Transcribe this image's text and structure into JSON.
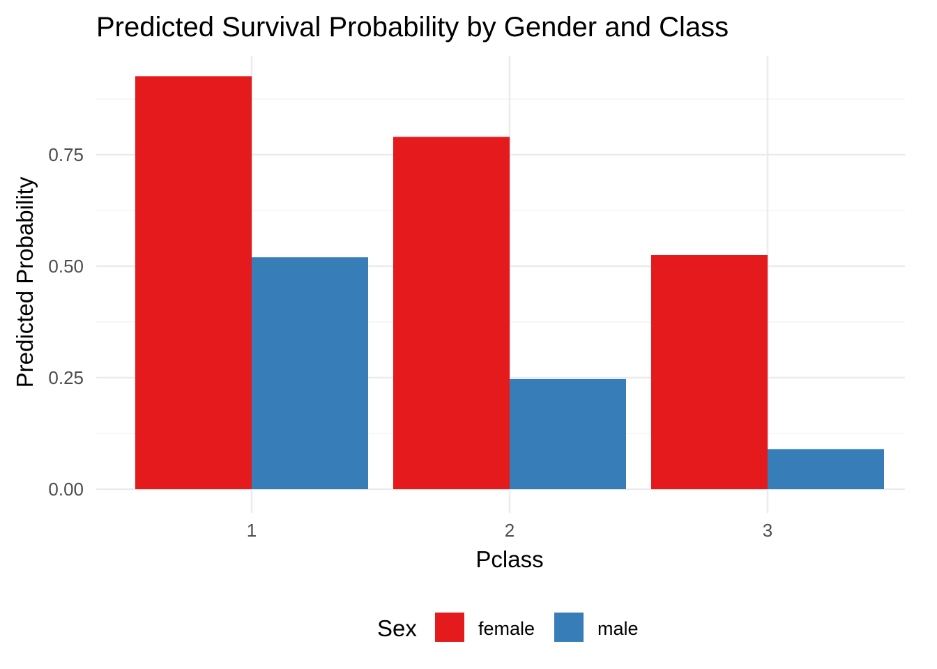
{
  "chart_data": {
    "type": "bar",
    "title": "Predicted Survival Probability by Gender and Class",
    "xlabel": "Pclass",
    "ylabel": "Predicted Probability",
    "categories": [
      "1",
      "2",
      "3"
    ],
    "series": [
      {
        "name": "female",
        "values": [
          0.926,
          0.79,
          0.525
        ],
        "color": "#E41A1C"
      },
      {
        "name": "male",
        "values": [
          0.52,
          0.247,
          0.09
        ],
        "color": "#377EB8"
      }
    ],
    "ylim": [
      0,
      0.95
    ],
    "yticks": [
      0,
      0.25,
      0.5,
      0.75
    ],
    "ytick_labels": [
      "0.00",
      "0.25",
      "0.50",
      "0.75"
    ],
    "grid": true,
    "legend": {
      "title": "Sex",
      "placement": "bottom"
    }
  }
}
